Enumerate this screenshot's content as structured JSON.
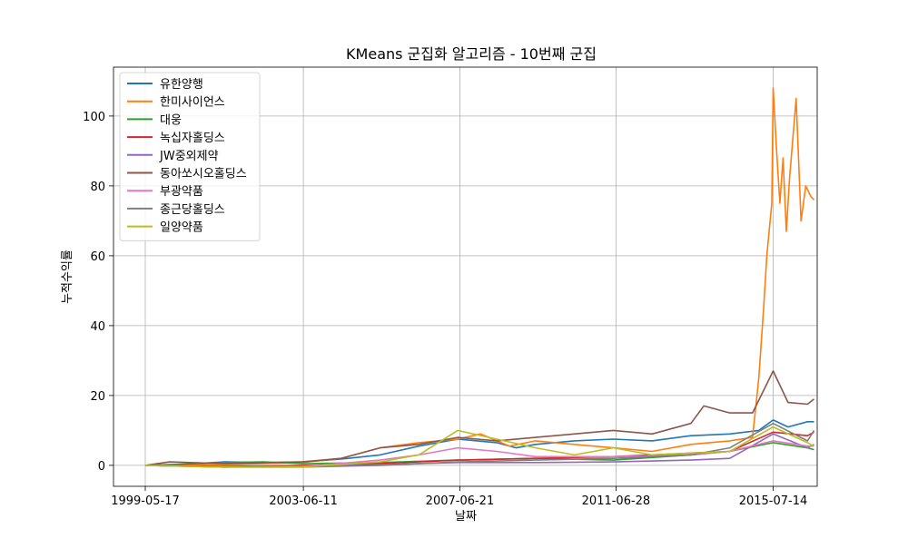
{
  "chart_data": {
    "type": "line",
    "title": "KMeans 군집화 알고리즘 - 10번째 군집",
    "xlabel": "날짜",
    "ylabel": "누적수익률",
    "x_ticks": [
      "1999-05-17",
      "2003-06-11",
      "2007-06-21",
      "2011-06-28",
      "2015-07-14"
    ],
    "x_range": [
      "1999-05-17",
      "2016-09-01"
    ],
    "y_ticks": [
      0,
      20,
      40,
      60,
      80,
      100
    ],
    "ylim": [
      -6,
      114
    ],
    "grid": true,
    "legend_position": "top-left",
    "series": [
      {
        "name": "유한양행",
        "color": "#1f77b4",
        "points": [
          [
            "1999-05-17",
            0
          ],
          [
            "2000-06-01",
            0.3
          ],
          [
            "2001-06-01",
            1.0
          ],
          [
            "2002-06-01",
            0.8
          ],
          [
            "2003-06-01",
            1.0
          ],
          [
            "2004-06-01",
            1.8
          ],
          [
            "2005-06-01",
            3.0
          ],
          [
            "2006-06-01",
            5.5
          ],
          [
            "2007-06-01",
            7.5
          ],
          [
            "2008-06-01",
            6.5
          ],
          [
            "2008-12-01",
            5.0
          ],
          [
            "2009-06-01",
            6.0
          ],
          [
            "2010-06-01",
            7.0
          ],
          [
            "2011-06-01",
            7.5
          ],
          [
            "2012-06-01",
            7.0
          ],
          [
            "2013-06-01",
            8.5
          ],
          [
            "2014-06-01",
            9.0
          ],
          [
            "2015-03-01",
            10.0
          ],
          [
            "2015-07-14",
            13.0
          ],
          [
            "2015-12-01",
            11.0
          ],
          [
            "2016-06-01",
            12.5
          ],
          [
            "2016-08-01",
            12.5
          ]
        ]
      },
      {
        "name": "한미사이언스",
        "color": "#ff7f0e",
        "points": [
          [
            "1999-05-17",
            0
          ],
          [
            "2001-06-01",
            0.2
          ],
          [
            "2003-06-01",
            0.8
          ],
          [
            "2004-06-01",
            2.0
          ],
          [
            "2005-06-01",
            5.0
          ],
          [
            "2006-06-01",
            6.5
          ],
          [
            "2007-06-01",
            7.5
          ],
          [
            "2008-01-01",
            9.0
          ],
          [
            "2008-10-01",
            5.5
          ],
          [
            "2009-06-01",
            7.0
          ],
          [
            "2010-06-01",
            6.0
          ],
          [
            "2011-06-01",
            5.0
          ],
          [
            "2012-06-01",
            4.0
          ],
          [
            "2013-06-01",
            6.0
          ],
          [
            "2014-06-01",
            7.0
          ],
          [
            "2015-01-01",
            8.0
          ],
          [
            "2015-03-01",
            25.0
          ],
          [
            "2015-04-15",
            45.0
          ],
          [
            "2015-05-15",
            60.0
          ],
          [
            "2015-07-01",
            75.0
          ],
          [
            "2015-07-14",
            108.0
          ],
          [
            "2015-08-15",
            90.0
          ],
          [
            "2015-09-15",
            75.0
          ],
          [
            "2015-10-15",
            88.0
          ],
          [
            "2015-11-15",
            67.0
          ],
          [
            "2015-12-15",
            82.0
          ],
          [
            "2016-02-15",
            105.0
          ],
          [
            "2016-04-01",
            70.0
          ],
          [
            "2016-05-15",
            80.0
          ],
          [
            "2016-07-01",
            77.0
          ],
          [
            "2016-08-01",
            76.0
          ]
        ]
      },
      {
        "name": "대웅",
        "color": "#2ca02c",
        "points": [
          [
            "1999-05-17",
            0
          ],
          [
            "2001-06-01",
            0.8
          ],
          [
            "2002-06-01",
            1.0
          ],
          [
            "2003-06-01",
            0.5
          ],
          [
            "2005-06-01",
            0.8
          ],
          [
            "2007-06-01",
            1.5
          ],
          [
            "2009-06-01",
            2.0
          ],
          [
            "2011-06-01",
            1.5
          ],
          [
            "2013-06-01",
            3.0
          ],
          [
            "2014-06-01",
            4.0
          ],
          [
            "2015-07-14",
            6.5
          ],
          [
            "2016-06-01",
            5.0
          ],
          [
            "2016-08-01",
            4.5
          ]
        ]
      },
      {
        "name": "녹십자홀딩스",
        "color": "#d62728",
        "points": [
          [
            "1999-05-17",
            0
          ],
          [
            "2001-06-01",
            -0.3
          ],
          [
            "2003-06-01",
            0.0
          ],
          [
            "2005-06-01",
            0.5
          ],
          [
            "2007-06-01",
            1.5
          ],
          [
            "2009-06-01",
            2.0
          ],
          [
            "2011-06-01",
            2.5
          ],
          [
            "2013-06-01",
            3.5
          ],
          [
            "2014-06-01",
            4.0
          ],
          [
            "2015-07-14",
            9.5
          ],
          [
            "2016-06-01",
            8.5
          ],
          [
            "2016-08-01",
            9.5
          ]
        ]
      },
      {
        "name": "JW중외제약",
        "color": "#9467bd",
        "points": [
          [
            "1999-05-17",
            0
          ],
          [
            "2001-06-01",
            -0.5
          ],
          [
            "2003-06-01",
            -0.3
          ],
          [
            "2005-06-01",
            0.2
          ],
          [
            "2007-06-01",
            0.8
          ],
          [
            "2009-06-01",
            0.8
          ],
          [
            "2011-06-01",
            1.0
          ],
          [
            "2013-06-01",
            1.5
          ],
          [
            "2014-06-01",
            2.0
          ],
          [
            "2015-07-14",
            9.0
          ],
          [
            "2016-06-01",
            5.0
          ],
          [
            "2016-08-01",
            6.0
          ]
        ]
      },
      {
        "name": "동아쏘시오홀딩스",
        "color": "#8c564b",
        "points": [
          [
            "1999-05-17",
            0
          ],
          [
            "2000-01-01",
            1.0
          ],
          [
            "2001-06-01",
            0.5
          ],
          [
            "2003-06-01",
            1.0
          ],
          [
            "2004-06-01",
            2.0
          ],
          [
            "2005-06-01",
            5.0
          ],
          [
            "2006-06-01",
            6.0
          ],
          [
            "2007-06-01",
            8.0
          ],
          [
            "2008-06-01",
            7.0
          ],
          [
            "2009-06-01",
            8.0
          ],
          [
            "2010-06-01",
            9.0
          ],
          [
            "2011-06-01",
            10.0
          ],
          [
            "2012-06-01",
            9.0
          ],
          [
            "2013-06-01",
            12.0
          ],
          [
            "2013-10-01",
            17.0
          ],
          [
            "2014-06-01",
            15.0
          ],
          [
            "2015-01-01",
            15.0
          ],
          [
            "2015-07-14",
            27.0
          ],
          [
            "2015-12-01",
            18.0
          ],
          [
            "2016-06-01",
            17.5
          ],
          [
            "2016-08-01",
            19.0
          ]
        ]
      },
      {
        "name": "부광약품",
        "color": "#e377c2",
        "points": [
          [
            "1999-05-17",
            0
          ],
          [
            "2001-06-01",
            -0.5
          ],
          [
            "2003-06-01",
            -0.3
          ],
          [
            "2005-06-01",
            1.5
          ],
          [
            "2006-06-01",
            3.0
          ],
          [
            "2007-06-01",
            5.0
          ],
          [
            "2008-06-01",
            4.0
          ],
          [
            "2009-06-01",
            2.5
          ],
          [
            "2011-06-01",
            2.5
          ],
          [
            "2013-06-01",
            3.0
          ],
          [
            "2014-06-01",
            4.0
          ],
          [
            "2015-07-14",
            7.0
          ],
          [
            "2016-06-01",
            5.5
          ],
          [
            "2016-08-01",
            5.5
          ]
        ]
      },
      {
        "name": "종근당홀딩스",
        "color": "#7f7f7f",
        "points": [
          [
            "1999-05-17",
            0
          ],
          [
            "2001-06-01",
            -0.5
          ],
          [
            "2003-06-01",
            -0.5
          ],
          [
            "2005-06-01",
            0.0
          ],
          [
            "2007-06-01",
            1.0
          ],
          [
            "2009-06-01",
            1.5
          ],
          [
            "2011-06-01",
            2.0
          ],
          [
            "2013-06-01",
            3.0
          ],
          [
            "2014-06-01",
            5.0
          ],
          [
            "2015-07-14",
            12.0
          ],
          [
            "2016-06-01",
            7.0
          ],
          [
            "2016-08-01",
            10.0
          ]
        ]
      },
      {
        "name": "일양약품",
        "color": "#bcbd22",
        "points": [
          [
            "1999-05-17",
            0
          ],
          [
            "2001-06-01",
            -0.5
          ],
          [
            "2003-06-01",
            -0.5
          ],
          [
            "2005-06-01",
            1.0
          ],
          [
            "2006-06-01",
            3.0
          ],
          [
            "2007-06-01",
            10.0
          ],
          [
            "2008-06-01",
            7.5
          ],
          [
            "2009-06-01",
            5.0
          ],
          [
            "2010-06-01",
            3.0
          ],
          [
            "2011-06-01",
            5.0
          ],
          [
            "2012-06-01",
            3.0
          ],
          [
            "2013-06-01",
            3.5
          ],
          [
            "2014-06-01",
            4.0
          ],
          [
            "2015-07-14",
            11.0
          ],
          [
            "2016-06-01",
            6.5
          ],
          [
            "2016-08-01",
            5.5
          ]
        ]
      }
    ]
  }
}
